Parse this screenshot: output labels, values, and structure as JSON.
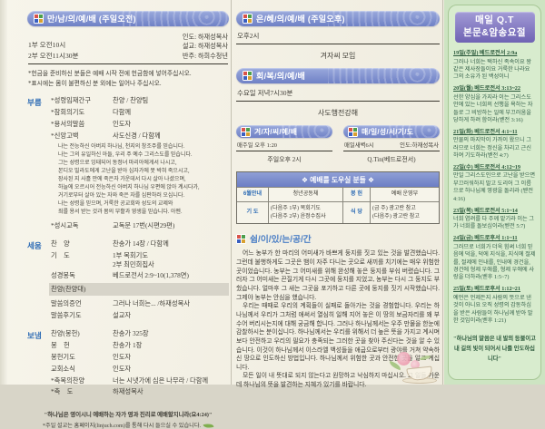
{
  "colors": {
    "header_bar_top": "#9aa9dc",
    "header_bar_bottom": "#6f81c6",
    "accent_blue": "#2e6cb5",
    "qt_header_top": "#a29bd6",
    "qt_header_bottom": "#6f63b4",
    "green_panel_bg": "#cde4c2",
    "green_panel_border": "#a6c795",
    "paper": "#f2efe3",
    "ink": "#3f3d36",
    "qt_ink": "#35604a"
  },
  "icons": {
    "window_icon": "four-color-window-square",
    "leaf_icon": "green-leaf",
    "decoration": "flower-and-teacup"
  },
  "left_panel": {
    "header": "만/남/의/예/배 (주일오전)",
    "times": [
      "1부 오전10시",
      "2부 오전11시30분"
    ],
    "roles": [
      "인도: 하재성목사",
      "설교: 하재성목사",
      "반주: 하희수청년"
    ],
    "notes": [
      "*헌금을 준비하신 분들은 예배 시작 전에 헌금함에 넣어주십시오.",
      "*표시에는 몸이 불편하신 분 외에는 일어나 주십시오."
    ],
    "call_label": "부름",
    "build_label": "세움",
    "send_label": "보냄",
    "call_rows_a": [
      {
        "item": "*성령임재간구",
        "value": "찬양 / 찬양팀"
      },
      {
        "item": "*참회의기도",
        "value": "다함께"
      },
      {
        "item": "*용서의말씀",
        "value": "인도자"
      },
      {
        "item": "*신앙고백",
        "value": "사도신경 / 다함께"
      }
    ],
    "creed": "나는 전능하신 아버지 하나님, 천지의 창조주를 믿습니다.\n나는 그의 유일하신 아들, 우리 주 예수 그리스도를 믿습니다.\n그는 성령으로 잉태되어 동정녀 마리아에게서 나시고,\n본디오 빌라도에게 고난을 받아 십자가에 못 박혀 죽으시고,\n장사된 지 사흘 만에 죽은자 가운데서 다시 살아 나셨으며,\n하늘에 오르시어 전능하신 아버지 하나님 우편에 앉아 계시다가,\n거기로부터 살아 있는 자와 죽은 자를 심판하러 오십니다.\n나는 성령을 믿으며, 거룩한 공교회와 성도의 교제와\n죄를 용서 받는 것과 몸의 부활과 영생을 믿습니다.  아멘.",
    "call_rows_b": [
      {
        "item": "*성시교독",
        "value": "교독문 17번(시편29편)"
      }
    ],
    "build_rows": [
      {
        "item": "찬    양",
        "value": "찬송가 14장 / 다함께"
      },
      {
        "item": "기    도",
        "value": "1부 목회기도\n2부 최민희집사"
      },
      {
        "item": "성경봉독",
        "value": "베드로전서 2:9~10(1,378면)"
      },
      {
        "item": "찬양(찬양대)",
        "value": "",
        "class": "hl"
      },
      {
        "item": "말씀의증언",
        "value": "그러나 너희는...  /하재성목사"
      },
      {
        "item": "말씀후기도",
        "value": "설교자"
      }
    ],
    "send_rows": [
      {
        "item": "찬양(봉헌)",
        "value": "찬송가 325장"
      },
      {
        "item": "봉    헌",
        "value": "찬송가 1장"
      },
      {
        "item": "봉헌기도",
        "value": "인도자"
      },
      {
        "item": "교회소식",
        "value": "인도자"
      },
      {
        "item": "*축복의찬양",
        "value": "너는 시냇가에 심은 나무라 / 다함께"
      },
      {
        "item": "*축    도",
        "value": "하재성목사"
      }
    ],
    "footer_quote": "\"하나님은 영이시니 예배하는 자가 영과 진리로 예배할지니라(요4:24)\"",
    "footer_note": "*주일 설교는 홈페이지(linjuch.com)를 통해 다시 들으실 수 있습니다."
  },
  "middle_panel": {
    "grace_header": "은/혜/의/예/배 (주일오후)",
    "grace_time": "오후2시",
    "grace_content": "겨자씨 모임",
    "recovery_header": "회/복/의/예/배",
    "recovery_time": "수요일 저녁7시30분",
    "recovery_content": "사도행전강해",
    "mustard_header": "겨/자/씨/예/배",
    "mustard_time": "매주일 오후 1:20",
    "mustard_content": "주일오후 2시",
    "daily_header": "매/일/성/서/기/도",
    "daily_time": "매일새벽6시",
    "daily_leader": "인도:하재성목사",
    "daily_content": "Q.Tin(베드로전서)",
    "helpers_table": {
      "title": "❖  예배를 도우실 분들  ❖",
      "rows": [
        {
          "label1": "6월안내",
          "value1": "청년공동체",
          "label2": "봉 헌",
          "value2": "예배 운영부"
        },
        {
          "label1": "기 도",
          "value1": "(다음주 1부) 목회기도\n(다음주 2부) 윤정수집사",
          "label2": "식 당",
          "value2": "(금  주) 광고란 참고\n(다음주) 광고란 참고"
        }
      ]
    },
    "rest_title": "쉼/이/있/는/공/간",
    "rest_paragraphs": [
      "어느 농부가 한 마리의 어미새가 바쁘게 둥지를 짓고 있는 것을 발견했습니다. 그런데 불행하게도 그곳은 뱀이 자주 다니는 곳으로 새끼를 치기에는 매우 위험한 곳이었습니다. 농부는 그 어미새를 위해 완성해 놓은 둥지를 부숴 버렸습니다. 그러자 그 어미새는 끈질기게 다시 그곳에 둥지를 지었고, 농부는 다시 그 둥지도 부쉈습니다. 얼마후 그 새는 그곳을 포기하고 다른 곳에 둥지를 짓기 시작했습니다. 그제야 농부는 안심을 했습니다.",
      "우리는 때때로 우리의 계획들이 실패로 돌아가는 것을 경험합니다. 우리는 하나님께서 우리가 그처럼 애써서 열심히 일해 지어 놓은 이 땅의 보금자리를 왜 부수어 버리시는지에 대해 궁금해 합니다. 그러나 하나님께서는 우주 만물을 한눈에 감찰하시는 분이십니다. 하나님께서는 우리를 위해서 더 높은 뜻을 가지고 계시며 보다 안전하고 우리의 필요가 충족되는 그러한 곳을 찾아 주신다는 것을 알 수 있습니다. 이것이 하나님께서 이스라엘 백성들을 애굽으로부터 광야를 거쳐 약속하신 땅으로 인도하신 방법입니다. 하나님께서 위험한 곳과 안전한 곳을 알고 계십니다.",
      "모든 일이 내 뜻대로 되지 않는다고 원망하고 낙심하지 마십시오. 그 일들 가운데 하나님의 뜻을 발견하는 지혜가 있기를 바랍니다."
    ]
  },
  "right_panel": {
    "header_line1": "매일 Q.T",
    "header_line2": "본문&암송요절",
    "entries": [
      {
        "date": "19일(주일) 베드로전서 2:9a",
        "verse": "그러나 너희는 택하신 족속이요 왕 같은 제사장들이요 거룩한 나라요 그의 소유가 된 백성이니"
      },
      {
        "date": "20일(월) 베드로전서 3:13~22",
        "verse": "선한 양심을 가지라 이는 그리스도 안에 있는 너희의 선행을 욕하는 자들로 그 비방하는 일에 부끄러움을 당하게 하려 함이라(벧전 3:16)"
      },
      {
        "date": "21일(화) 베드로전서 4:1~11",
        "verse": "만물의 마지막이 가까이 왔으니 그러므로 너희는 정신을 차리고 근신하여 기도하라(벧전 4:7)"
      },
      {
        "date": "22일(수) 베드로전서 4:12~19",
        "verse": "만일 그리스도인으로 고난을 받으면 부끄러워하지 말고 도리어 그 이름으로 하나님께 영광을 돌리라 (벧전 4:16)"
      },
      {
        "date": "23일(목) 베드로전서 5:1~14",
        "verse": "너희 염려를 다 주께 맡기라 이는 그가 너희를 돌보심이라(벧전 5:7)"
      },
      {
        "date": "24일(금) 베드로후서 1:1~11",
        "verse": "그러므로 너희가 더욱 힘써 너희 믿음에 덕을, 덕에 지식을, 지식에 절제를, 절제에 인내를, 인내에 경건을, 경건에 형제 우애를, 형제 우애에 사랑을 더하라(벧후 1:5~7)"
      },
      {
        "date": "25일(토) 베드로후서 1:12~21",
        "verse": "예언은 언제든지 사람의 뜻으로 낸 것이 아니요 오직 성령의 감동하심을 받은 사람들이 하나님께 받아 말한 것임이라(벧후 1:21)"
      }
    ],
    "footer_quote": "\"하나님의 말씀은 내 발의 등불이고\n내 길의 빛이 되어서 나를 인도하십니다\""
  }
}
